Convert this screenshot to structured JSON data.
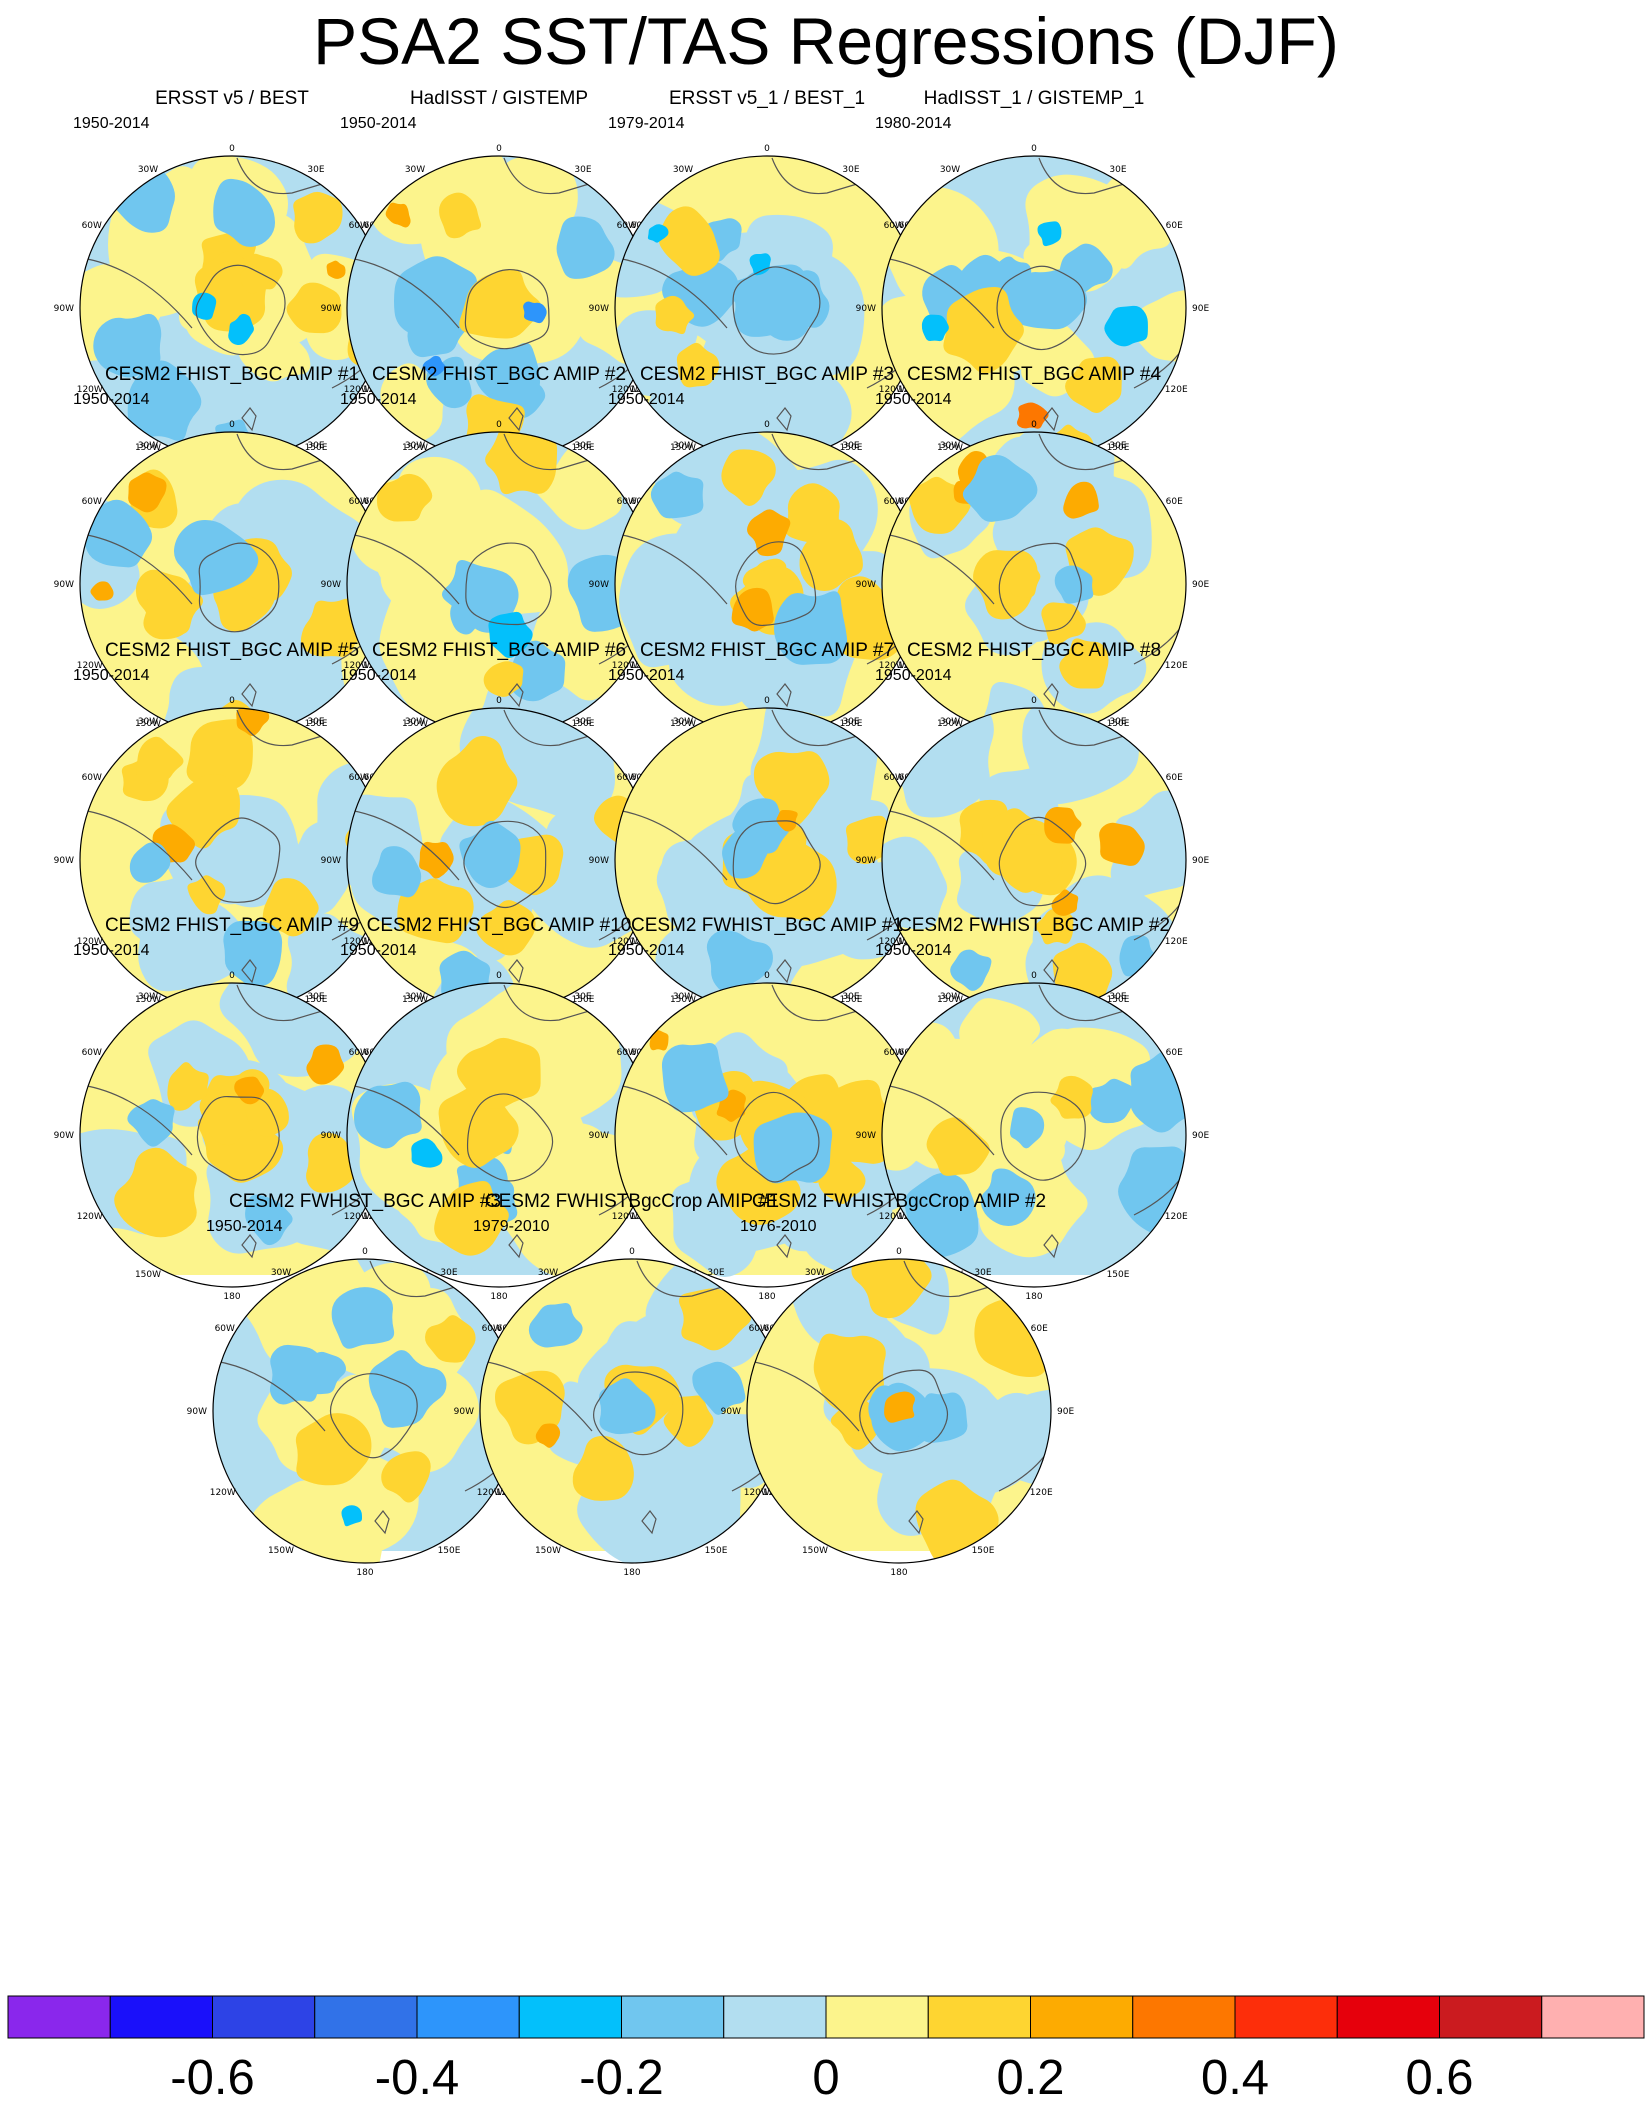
{
  "figure": {
    "title": "PSA2 SST/TAS Regressions (DJF)",
    "map_labels": {
      "top": "0",
      "bottom": "180",
      "left": "90W",
      "right": "90E",
      "upper_left": [
        "30W",
        "60W"
      ],
      "upper_right": [
        "30E",
        "60E"
      ],
      "lower_left": [
        "120W",
        "150W"
      ],
      "lower_right": [
        "120E",
        "150E"
      ]
    },
    "panels": [
      {
        "title": "ERSST v5 / BEST",
        "period": "1950-2014",
        "pattern": "ersst"
      },
      {
        "title": "HadISST / GISTEMP",
        "period": "1950-2014",
        "pattern": "hadisst"
      },
      {
        "title": "ERSST v5_1 / BEST_1",
        "period": "1979-2014",
        "pattern": "ersst1"
      },
      {
        "title": "HadISST_1 / GISTEMP_1",
        "period": "1980-2014",
        "pattern": "hadisst1"
      },
      {
        "title": "CESM2 FHIST_BGC AMIP #1",
        "period": "1950-2014",
        "pattern": "warm"
      },
      {
        "title": "CESM2 FHIST_BGC AMIP #2",
        "period": "1950-2014",
        "pattern": "cool"
      },
      {
        "title": "CESM2 FHIST_BGC AMIP #3",
        "period": "1950-2014",
        "pattern": "warm"
      },
      {
        "title": "CESM2 FHIST_BGC AMIP #4",
        "period": "1950-2014",
        "pattern": "ring"
      },
      {
        "title": "CESM2 FHIST_BGC AMIP #5",
        "period": "1950-2014",
        "pattern": "warm"
      },
      {
        "title": "CESM2 FHIST_BGC AMIP #6",
        "period": "1950-2014",
        "pattern": "mixed"
      },
      {
        "title": "CESM2 FHIST_BGC AMIP #7",
        "period": "1950-2014",
        "pattern": "mixed"
      },
      {
        "title": "CESM2 FHIST_BGC AMIP #8",
        "period": "1950-2014",
        "pattern": "ring"
      },
      {
        "title": "CESM2 FHIST_BGC AMIP #9",
        "period": "1950-2014",
        "pattern": "warm"
      },
      {
        "title": "CESM2 FHIST_BGC AMIP #10",
        "period": "1950-2014",
        "pattern": "cool"
      },
      {
        "title": "CESM2 FWHIST_BGC AMIP #1",
        "period": "1950-2014",
        "pattern": "warm"
      },
      {
        "title": "CESM2 FWHIST_BGC AMIP #2",
        "period": "1950-2014",
        "pattern": "ringcool"
      },
      {
        "title": "CESM2 FWHIST_BGC AMIP #3",
        "period": "1950-2014",
        "pattern": "cool"
      },
      {
        "title": "CESM2 FWHISTBgcCrop AMIP #1",
        "period": "1979-2010",
        "pattern": "mixed"
      },
      {
        "title": "CESM2 FWHISTBgcCrop AMIP #2",
        "period": "1976-2010",
        "pattern": "mixed"
      }
    ]
  },
  "colorbar": {
    "colors": [
      "#8a27ec",
      "#1a10fa",
      "#2d43e6",
      "#3172e8",
      "#2d95fb",
      "#03c0fb",
      "#70c6ef",
      "#b2def0",
      "#fcf48c",
      "#fed531",
      "#fdab01",
      "#fd7700",
      "#fd2e0a",
      "#e6000c",
      "#cb1b1f",
      "#ffb0b0"
    ],
    "tick_labels": [
      "-0.6",
      "-0.4",
      "-0.2",
      "0",
      "0.2",
      "0.4",
      "0.6"
    ],
    "tick_values": [
      -0.6,
      -0.4,
      -0.2,
      0,
      0.2,
      0.4,
      0.6
    ]
  }
}
